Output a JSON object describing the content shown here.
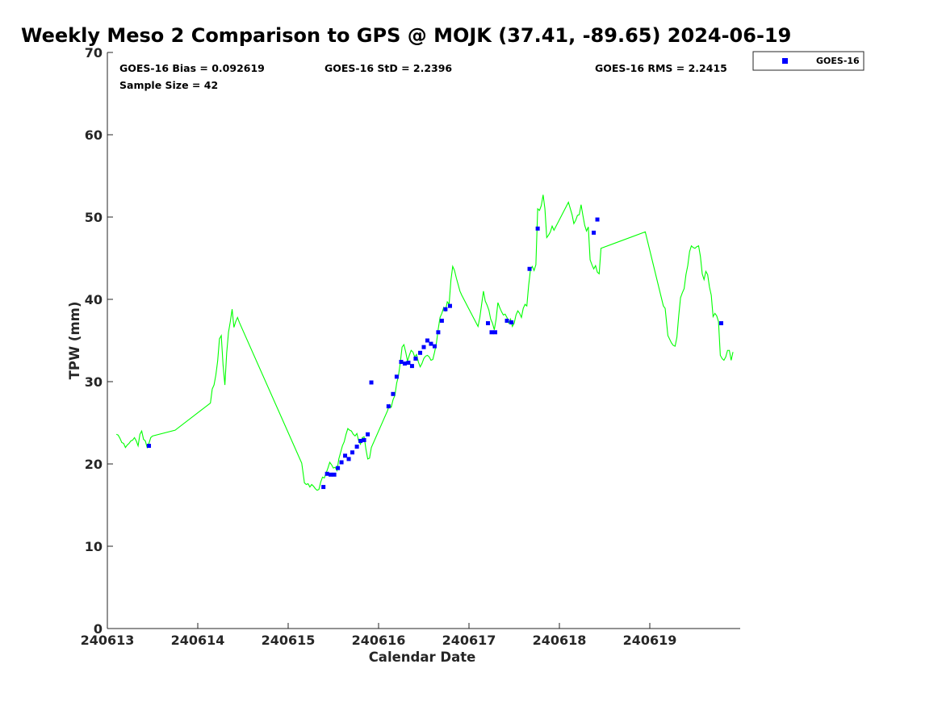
{
  "chart_data": {
    "type": "scatter",
    "title": "Weekly Meso 2 Comparison to GPS @ MOJK (37.41, -89.65) 2024-06-19",
    "xlabel": "Calendar Date",
    "ylabel": "TPW (mm)",
    "xlim": [
      240613,
      240620
    ],
    "ylim": [
      0,
      70
    ],
    "xticks": [
      "240613",
      "240614",
      "240615",
      "240616",
      "240617",
      "240618",
      "240619"
    ],
    "yticks": [
      "0",
      "10",
      "20",
      "30",
      "40",
      "50",
      "60",
      "70"
    ],
    "grid": false,
    "legend_position": "top-right",
    "stats": {
      "bias": "GOES-16 Bias = 0.092619",
      "std": "GOES-16 StD = 2.2396",
      "rms": "GOES-16 RMS = 2.2415",
      "sample": "Sample Size = 42"
    },
    "colors": {
      "gps_line": "#00ff00",
      "goes_markers": "#0000ff",
      "axes": "#262626"
    },
    "series": [
      {
        "name": "",
        "kind": "line",
        "color": "#00ff00",
        "points": [
          [
            240613.1,
            23.6
          ],
          [
            240613.12,
            23.5
          ],
          [
            240613.14,
            23.1
          ],
          [
            240613.16,
            22.6
          ],
          [
            240613.18,
            22.5
          ],
          [
            240613.2,
            22.0
          ],
          [
            240613.22,
            22.3
          ],
          [
            240613.24,
            22.5
          ],
          [
            240613.26,
            22.8
          ],
          [
            240613.28,
            22.9
          ],
          [
            240613.3,
            23.2
          ],
          [
            240613.32,
            22.8
          ],
          [
            240613.34,
            22.2
          ],
          [
            240613.36,
            23.6
          ],
          [
            240613.38,
            24.0
          ],
          [
            240613.4,
            23.0
          ],
          [
            240613.42,
            22.8
          ],
          [
            240613.44,
            22.0
          ],
          [
            240613.46,
            22.5
          ],
          [
            240613.48,
            23.2
          ],
          [
            240613.5,
            23.4
          ],
          [
            240613.75,
            24.1
          ],
          [
            240614.14,
            27.4
          ],
          [
            240614.16,
            29.1
          ],
          [
            240614.18,
            29.6
          ],
          [
            240614.2,
            30.8
          ],
          [
            240614.22,
            32.5
          ],
          [
            240614.24,
            35.2
          ],
          [
            240614.26,
            35.6
          ],
          [
            240614.28,
            32.0
          ],
          [
            240614.3,
            29.6
          ],
          [
            240614.32,
            33.5
          ],
          [
            240614.34,
            36.0
          ],
          [
            240614.36,
            37.3
          ],
          [
            240614.38,
            38.8
          ],
          [
            240614.4,
            36.6
          ],
          [
            240614.42,
            37.3
          ],
          [
            240614.44,
            37.8
          ],
          [
            240614.46,
            37.2
          ],
          [
            240615.15,
            20.1
          ],
          [
            240615.18,
            17.7
          ],
          [
            240615.2,
            17.5
          ],
          [
            240615.22,
            17.6
          ],
          [
            240615.24,
            17.2
          ],
          [
            240615.26,
            17.5
          ],
          [
            240615.28,
            17.3
          ],
          [
            240615.3,
            17.0
          ],
          [
            240615.32,
            16.8
          ],
          [
            240615.34,
            16.9
          ],
          [
            240615.36,
            17.8
          ],
          [
            240615.38,
            18.4
          ],
          [
            240615.4,
            18.3
          ],
          [
            240615.42,
            18.9
          ],
          [
            240615.44,
            19.5
          ],
          [
            240615.46,
            20.2
          ],
          [
            240615.48,
            19.9
          ],
          [
            240615.5,
            19.5
          ],
          [
            240615.52,
            19.6
          ],
          [
            240615.54,
            19.2
          ],
          [
            240615.56,
            20.6
          ],
          [
            240615.58,
            21.4
          ],
          [
            240615.6,
            22.2
          ],
          [
            240615.62,
            22.7
          ],
          [
            240615.64,
            23.6
          ],
          [
            240615.66,
            24.3
          ],
          [
            240615.68,
            24.1
          ],
          [
            240615.7,
            24.0
          ],
          [
            240615.72,
            23.6
          ],
          [
            240615.74,
            23.4
          ],
          [
            240615.76,
            23.7
          ],
          [
            240615.78,
            22.8
          ],
          [
            240615.8,
            22.4
          ],
          [
            240615.82,
            23.2
          ],
          [
            240615.84,
            23.3
          ],
          [
            240615.86,
            21.8
          ],
          [
            240615.88,
            20.6
          ],
          [
            240615.9,
            20.7
          ],
          [
            240615.92,
            22.0
          ],
          [
            240616.1,
            26.5
          ],
          [
            240616.12,
            27.2
          ],
          [
            240616.14,
            26.9
          ],
          [
            240616.16,
            27.8
          ],
          [
            240616.18,
            28.3
          ],
          [
            240616.2,
            29.8
          ],
          [
            240616.22,
            30.7
          ],
          [
            240616.24,
            32.3
          ],
          [
            240616.26,
            34.2
          ],
          [
            240616.28,
            34.5
          ],
          [
            240616.3,
            33.6
          ],
          [
            240616.32,
            32.5
          ],
          [
            240616.34,
            33.2
          ],
          [
            240616.36,
            33.8
          ],
          [
            240616.38,
            33.6
          ],
          [
            240616.4,
            33.0
          ],
          [
            240616.42,
            33.3
          ],
          [
            240616.44,
            32.4
          ],
          [
            240616.46,
            31.8
          ],
          [
            240616.48,
            32.2
          ],
          [
            240616.5,
            32.8
          ],
          [
            240616.52,
            33.1
          ],
          [
            240616.54,
            33.2
          ],
          [
            240616.56,
            33.0
          ],
          [
            240616.58,
            32.6
          ],
          [
            240616.6,
            32.7
          ],
          [
            240616.62,
            33.6
          ],
          [
            240616.64,
            34.7
          ],
          [
            240616.66,
            36.4
          ],
          [
            240616.68,
            37.8
          ],
          [
            240616.7,
            38.3
          ],
          [
            240616.72,
            39.0
          ],
          [
            240616.74,
            38.6
          ],
          [
            240616.76,
            39.7
          ],
          [
            240616.78,
            39.4
          ],
          [
            240616.8,
            42.3
          ],
          [
            240616.82,
            44.0
          ],
          [
            240616.84,
            43.5
          ],
          [
            240616.86,
            42.6
          ],
          [
            240616.88,
            41.8
          ],
          [
            240616.9,
            41.0
          ],
          [
            240616.92,
            40.5
          ],
          [
            240617.1,
            36.7
          ],
          [
            240617.12,
            37.8
          ],
          [
            240617.14,
            39.4
          ],
          [
            240617.16,
            41.0
          ],
          [
            240617.18,
            39.8
          ],
          [
            240617.2,
            39.3
          ],
          [
            240617.22,
            38.7
          ],
          [
            240617.24,
            37.6
          ],
          [
            240617.26,
            37.1
          ],
          [
            240617.28,
            36.3
          ],
          [
            240617.3,
            37.6
          ],
          [
            240617.32,
            39.6
          ],
          [
            240617.34,
            39.0
          ],
          [
            240617.36,
            38.5
          ],
          [
            240617.38,
            38.1
          ],
          [
            240617.4,
            38.2
          ],
          [
            240617.42,
            37.8
          ],
          [
            240617.44,
            37.1
          ],
          [
            240617.46,
            37.6
          ],
          [
            240617.48,
            36.7
          ],
          [
            240617.5,
            37.1
          ],
          [
            240617.52,
            38.1
          ],
          [
            240617.54,
            38.6
          ],
          [
            240617.56,
            38.3
          ],
          [
            240617.58,
            37.8
          ],
          [
            240617.6,
            38.9
          ],
          [
            240617.62,
            39.4
          ],
          [
            240617.64,
            39.2
          ],
          [
            240617.66,
            41.7
          ],
          [
            240617.68,
            43.6
          ],
          [
            240617.7,
            44.0
          ],
          [
            240617.72,
            43.5
          ],
          [
            240617.74,
            44.2
          ],
          [
            240617.76,
            51.0
          ],
          [
            240617.78,
            50.8
          ],
          [
            240617.8,
            51.4
          ],
          [
            240617.82,
            52.7
          ],
          [
            240617.84,
            51.0
          ],
          [
            240617.86,
            47.5
          ],
          [
            240617.88,
            47.8
          ],
          [
            240617.9,
            48.2
          ],
          [
            240617.92,
            48.9
          ],
          [
            240617.94,
            48.4
          ],
          [
            240618.1,
            51.8
          ],
          [
            240618.14,
            50.3
          ],
          [
            240618.16,
            49.2
          ],
          [
            240618.18,
            49.6
          ],
          [
            240618.2,
            50.2
          ],
          [
            240618.22,
            50.3
          ],
          [
            240618.24,
            51.5
          ],
          [
            240618.26,
            50.2
          ],
          [
            240618.28,
            49.0
          ],
          [
            240618.3,
            48.3
          ],
          [
            240618.32,
            48.8
          ],
          [
            240618.34,
            44.8
          ],
          [
            240618.36,
            44.2
          ],
          [
            240618.38,
            43.7
          ],
          [
            240618.4,
            44.1
          ],
          [
            240618.42,
            43.3
          ],
          [
            240618.44,
            43.1
          ],
          [
            240618.46,
            46.2
          ],
          [
            240618.95,
            48.2
          ],
          [
            240619.15,
            39.2
          ],
          [
            240619.17,
            38.9
          ],
          [
            240619.2,
            35.6
          ],
          [
            240619.24,
            34.7
          ],
          [
            240619.26,
            34.4
          ],
          [
            240619.28,
            34.3
          ],
          [
            240619.3,
            35.4
          ],
          [
            240619.32,
            38.0
          ],
          [
            240619.34,
            40.2
          ],
          [
            240619.36,
            40.8
          ],
          [
            240619.38,
            41.3
          ],
          [
            240619.4,
            43.0
          ],
          [
            240619.42,
            44.1
          ],
          [
            240619.44,
            45.8
          ],
          [
            240619.46,
            46.5
          ],
          [
            240619.48,
            46.3
          ],
          [
            240619.5,
            46.2
          ],
          [
            240619.52,
            46.4
          ],
          [
            240619.54,
            46.5
          ],
          [
            240619.56,
            45.2
          ],
          [
            240619.58,
            43.1
          ],
          [
            240619.6,
            42.4
          ],
          [
            240619.62,
            43.4
          ],
          [
            240619.64,
            43.0
          ],
          [
            240619.66,
            41.5
          ],
          [
            240619.68,
            40.5
          ],
          [
            240619.7,
            37.9
          ],
          [
            240619.72,
            38.3
          ],
          [
            240619.74,
            38.0
          ],
          [
            240619.76,
            37.3
          ],
          [
            240619.78,
            33.2
          ],
          [
            240619.8,
            32.8
          ],
          [
            240619.82,
            32.6
          ],
          [
            240619.84,
            33.0
          ],
          [
            240619.86,
            33.8
          ],
          [
            240619.88,
            33.8
          ],
          [
            240619.9,
            32.6
          ],
          [
            240619.92,
            33.6
          ]
        ]
      },
      {
        "name": "GOES-16",
        "kind": "scatter",
        "color": "#0000ff",
        "points": [
          [
            240613.46,
            22.2
          ],
          [
            240615.39,
            17.2
          ],
          [
            240615.43,
            18.8
          ],
          [
            240615.47,
            18.7
          ],
          [
            240615.51,
            18.7
          ],
          [
            240615.55,
            19.5
          ],
          [
            240615.59,
            20.2
          ],
          [
            240615.63,
            21.0
          ],
          [
            240615.67,
            20.6
          ],
          [
            240615.71,
            21.4
          ],
          [
            240615.76,
            22.1
          ],
          [
            240615.8,
            22.8
          ],
          [
            240615.84,
            22.9
          ],
          [
            240615.88,
            23.6
          ],
          [
            240615.92,
            29.9
          ],
          [
            240616.11,
            27.0
          ],
          [
            240616.16,
            28.5
          ],
          [
            240616.2,
            30.6
          ],
          [
            240616.25,
            32.4
          ],
          [
            240616.29,
            32.2
          ],
          [
            240616.33,
            32.3
          ],
          [
            240616.37,
            31.9
          ],
          [
            240616.41,
            32.8
          ],
          [
            240616.46,
            33.5
          ],
          [
            240616.5,
            34.2
          ],
          [
            240616.54,
            35.0
          ],
          [
            240616.58,
            34.6
          ],
          [
            240616.62,
            34.3
          ],
          [
            240616.66,
            36.0
          ],
          [
            240616.7,
            37.4
          ],
          [
            240616.74,
            38.8
          ],
          [
            240616.79,
            39.2
          ],
          [
            240617.21,
            37.1
          ],
          [
            240617.25,
            36.0
          ],
          [
            240617.29,
            36.0
          ],
          [
            240617.42,
            37.4
          ],
          [
            240617.47,
            37.2
          ],
          [
            240617.67,
            43.7
          ],
          [
            240617.76,
            48.6
          ],
          [
            240618.38,
            48.1
          ],
          [
            240618.42,
            49.7
          ],
          [
            240619.79,
            37.1
          ]
        ]
      }
    ]
  }
}
